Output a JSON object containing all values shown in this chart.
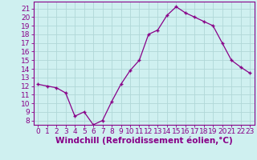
{
  "x": [
    0,
    1,
    2,
    3,
    4,
    5,
    6,
    7,
    8,
    9,
    10,
    11,
    12,
    13,
    14,
    15,
    16,
    17,
    18,
    19,
    20,
    21,
    22,
    23
  ],
  "y": [
    12.2,
    12.0,
    11.8,
    11.2,
    8.5,
    9.0,
    7.5,
    8.0,
    10.2,
    12.2,
    13.8,
    15.0,
    18.0,
    18.5,
    20.2,
    21.2,
    20.5,
    20.0,
    19.5,
    19.0,
    17.0,
    15.0,
    14.2,
    13.5
  ],
  "line_color": "#880088",
  "marker": "+",
  "background_color": "#cff0f0",
  "grid_color": "#b0d8d8",
  "xlabel": "Windchill (Refroidissement éolien,°C)",
  "ylabel_ticks": [
    8,
    9,
    10,
    11,
    12,
    13,
    14,
    15,
    16,
    17,
    18,
    19,
    20,
    21
  ],
  "ylim": [
    7.5,
    21.8
  ],
  "xlim": [
    -0.5,
    23.5
  ],
  "tick_fontsize": 6.5,
  "xlabel_fontsize": 7.5,
  "label_color": "#880088",
  "axis_color": "#880088",
  "spine_color": "#880088"
}
